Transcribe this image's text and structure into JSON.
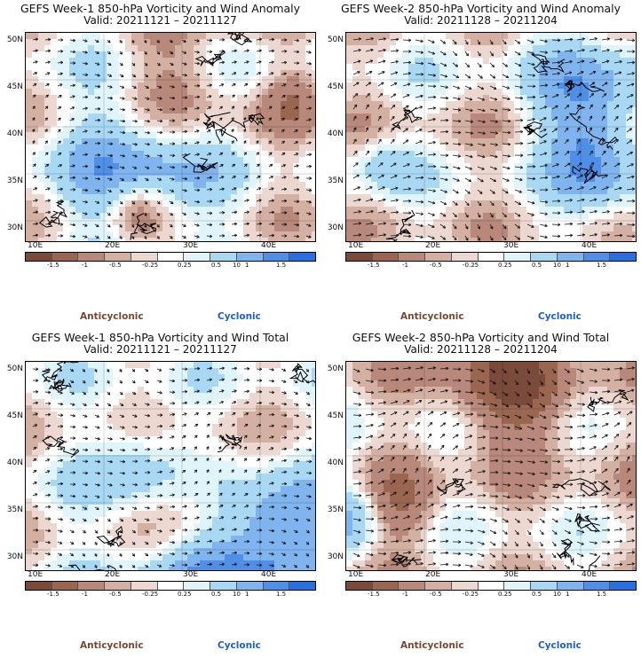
{
  "panels": [
    {
      "title": "GEFS Week-1 850-hPa Vorticity and Wind Anomaly",
      "valid": "Valid: 20211121 – 20211127",
      "seed": 11
    },
    {
      "title": "GEFS Week-2 850-hPa Vorticity and Wind Anomaly",
      "valid": "Valid: 20211128 – 20211204",
      "seed": 23
    },
    {
      "title": "GEFS Week-1 850-hPa Vorticity and Wind Total",
      "valid": "Valid: 20211121 – 20211127",
      "seed": 37
    },
    {
      "title": "GEFS Week-2 850-hPa Vorticity and Wind Total",
      "valid": "Valid: 20211128 – 20211204",
      "seed": 53
    }
  ],
  "lat_labels": [
    "50N",
    "45N",
    "40N",
    "35N",
    "30N"
  ],
  "lon_labels": [
    "10E",
    "20E",
    "30E",
    "40E"
  ],
  "colorbar": {
    "labels": [
      "-1.5",
      "-1",
      "-0.5",
      "-0.25",
      "0.25",
      "0.5",
      "1",
      "1.5"
    ],
    "multiplier": "10",
    "colors": [
      "#7a4a3a",
      "#9a6650",
      "#b8887a",
      "#d4b0a2",
      "#ecd8d0",
      "#ffffff",
      "#dff4fb",
      "#a9d8f5",
      "#7fb4ef",
      "#4f8fe7",
      "#2a6fe0"
    ]
  },
  "legend": {
    "anticyclonic": "Anticyclonic",
    "cyclonic": "Cyclonic",
    "anticyclonic_color": "#7a4630",
    "cyclonic_color": "#1e5fd0"
  }
}
